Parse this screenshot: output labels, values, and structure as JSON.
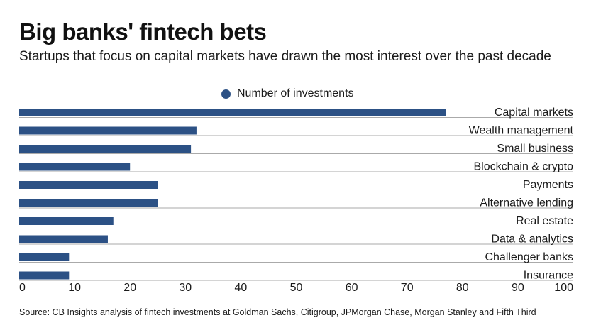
{
  "header": {
    "title": "Big banks' fintech bets",
    "subtitle": "Startups that focus on capital markets have drawn the most interest over the past decade"
  },
  "footer": {
    "source": "Source: CB Insights analysis of fintech investments at Goldman Sachs, Citigroup, JPMorgan Chase, Morgan Stanley and Fifth Third"
  },
  "colors": {
    "bar": "#2c5185",
    "rule": "#aaaaaa",
    "text": "#1a1a1a"
  },
  "chart_data": {
    "type": "bar",
    "orientation": "horizontal",
    "categories": [
      "Capital markets",
      "Wealth management",
      "Small business",
      "Blockchain & crypto",
      "Payments",
      "Alternative lending",
      "Real estate",
      "Data & analytics",
      "Challenger banks",
      "Insurance"
    ],
    "series": [
      {
        "name": "Number of investments",
        "values": [
          77,
          32,
          31,
          20,
          25,
          25,
          17,
          16,
          9,
          9
        ]
      }
    ],
    "xlim": [
      0,
      100
    ],
    "xticks": [
      0,
      10,
      20,
      30,
      40,
      50,
      60,
      70,
      80,
      90,
      100
    ],
    "legend": "top",
    "grid": false
  }
}
